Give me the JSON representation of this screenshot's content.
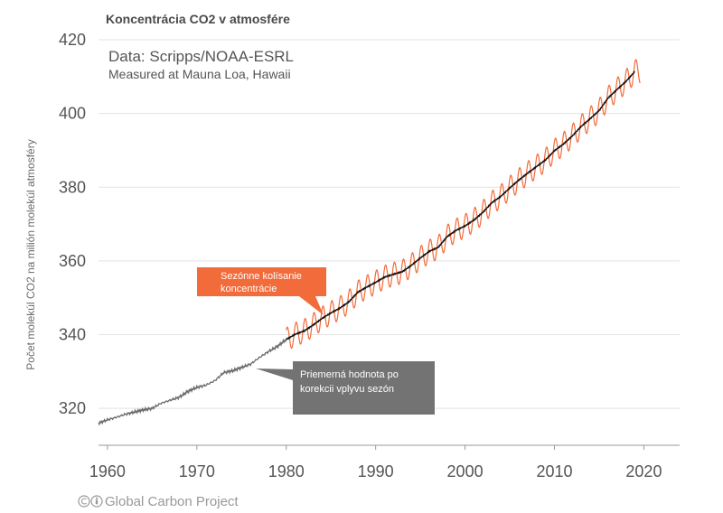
{
  "chart_data": {
    "type": "line",
    "title": "Koncentrácia CO2 v atmosfére",
    "source_line1": "Data: Scripps/NOAA-ESRL",
    "source_line2": "Measured at Mauna Loa, Hawaii",
    "xlabel": "",
    "ylabel": "Počet molekúl CO2 na milión molekúl atmosféry",
    "xlim": [
      1959,
      2024
    ],
    "ylim": [
      310,
      420
    ],
    "xticks": [
      1960,
      1970,
      1980,
      1990,
      2000,
      2010,
      2020
    ],
    "yticks": [
      320,
      340,
      360,
      380,
      400,
      420
    ],
    "grid": true,
    "series": [
      {
        "name": "Priemerná hodnota po korekcii vplyvu sezón (1959–1980)",
        "color": "#6b6b6b",
        "x": [
          1959,
          1960,
          1961,
          1962,
          1963,
          1964,
          1965,
          1966,
          1967,
          1968,
          1969,
          1970,
          1971,
          1972,
          1973,
          1974,
          1975,
          1976,
          1977,
          1978,
          1979,
          1980
        ],
        "y": [
          316.0,
          316.9,
          317.6,
          318.4,
          319.0,
          319.6,
          320.0,
          321.4,
          322.2,
          323.0,
          324.6,
          325.7,
          326.3,
          327.5,
          329.7,
          330.2,
          331.1,
          332.0,
          333.8,
          335.4,
          336.8,
          338.7
        ]
      },
      {
        "name": "Priemerná hodnota po korekcii vplyvu sezón",
        "color": "#111111",
        "x": [
          1980,
          1981,
          1982,
          1983,
          1984,
          1985,
          1986,
          1987,
          1988,
          1989,
          1990,
          1991,
          1992,
          1993,
          1994,
          1995,
          1996,
          1997,
          1998,
          1999,
          2000,
          2001,
          2002,
          2003,
          2004,
          2005,
          2006,
          2007,
          2008,
          2009,
          2010,
          2011,
          2012,
          2013,
          2014,
          2015,
          2016,
          2017,
          2018,
          2019
        ],
        "y": [
          338.7,
          340.1,
          341.0,
          342.6,
          344.4,
          345.9,
          347.2,
          348.9,
          351.5,
          352.9,
          354.2,
          355.6,
          356.4,
          357.1,
          358.8,
          360.8,
          362.6,
          363.7,
          366.6,
          368.3,
          369.5,
          371.1,
          373.2,
          375.8,
          377.5,
          379.8,
          381.9,
          383.8,
          385.6,
          387.4,
          389.9,
          391.7,
          393.9,
          396.5,
          398.6,
          400.8,
          404.2,
          406.5,
          408.7,
          411.4
        ]
      },
      {
        "name": "Sezónne kolísanie koncentrácie",
        "color": "#f26b3a",
        "x_start": 1980,
        "x_end": 2019.6,
        "seasonal_amplitude_ppm": 3.2,
        "note": "monthly values oscillate around the seasonally corrected mean"
      }
    ],
    "annotations": [
      {
        "text_line1": "Sezónne kolísanie",
        "text_line2": "koncentrácie",
        "color": "#f26b3a",
        "points_to_x": 1985,
        "points_to_y": 344
      },
      {
        "text_line1": "Priemerná hodnota po",
        "text_line2": "korekcii vplyvu sezón",
        "color": "#737373",
        "points_to_x": 1976.5,
        "points_to_y": 332
      }
    ]
  },
  "footer": {
    "credit": "Global Carbon Project",
    "icons": [
      "cc-icon",
      "by-icon"
    ]
  }
}
